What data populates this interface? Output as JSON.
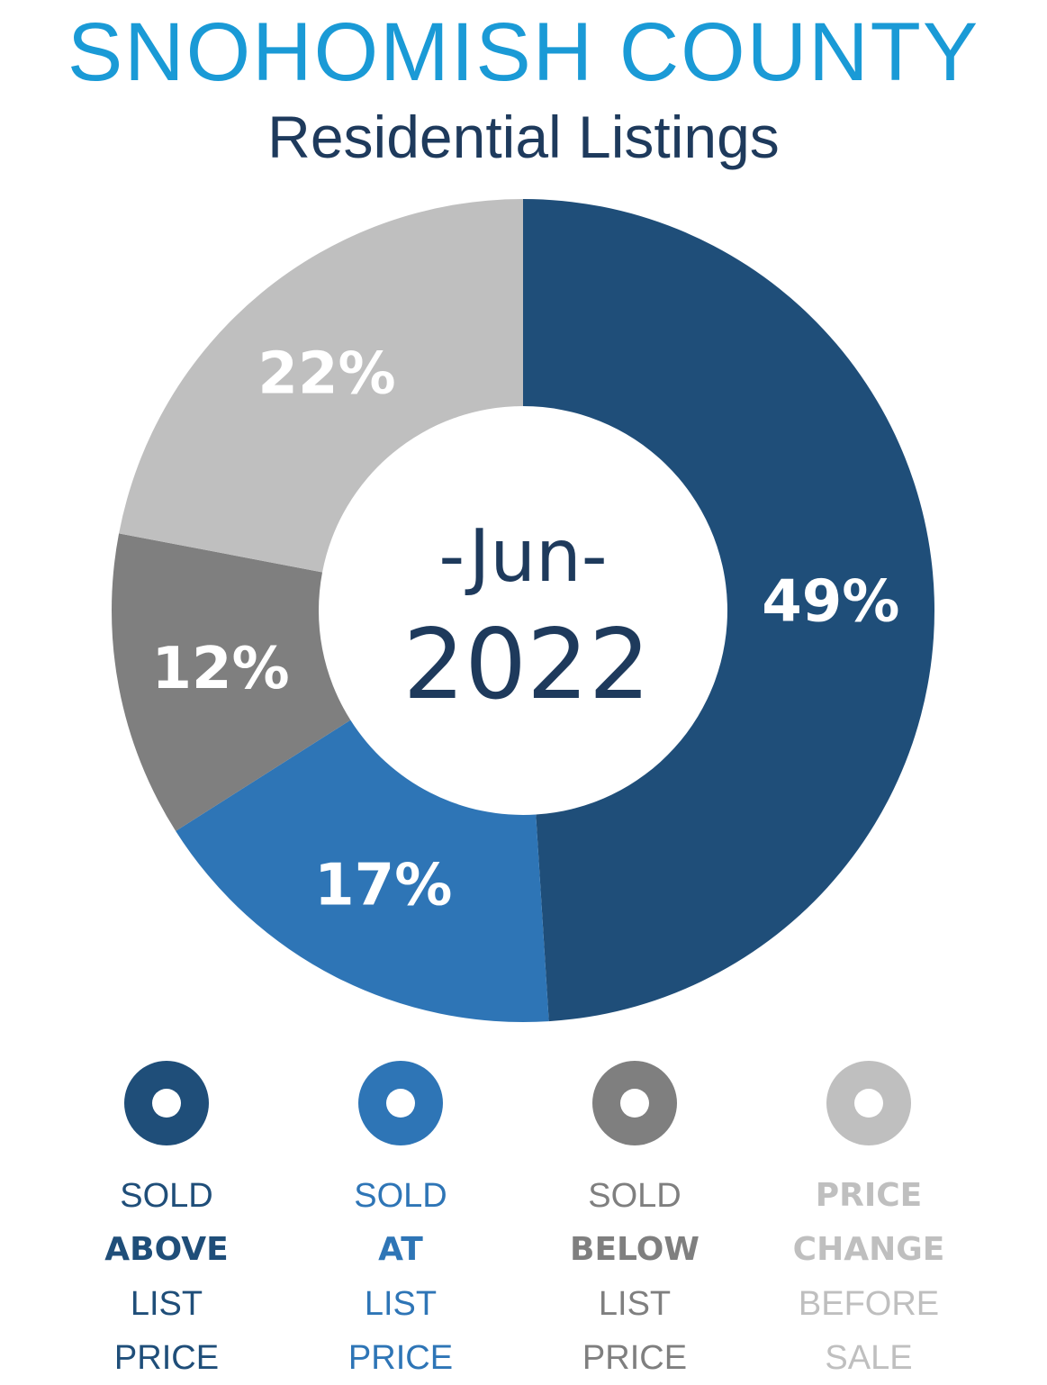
{
  "header": {
    "title": "SNOHOMISH COUNTY",
    "subtitle": "Residential Listings"
  },
  "colors": {
    "title": "#1a9ad6",
    "subtitle": "#1e3a5c",
    "center_text": "#1e3a5c"
  },
  "center": {
    "month": "-Jun-",
    "year": "2022"
  },
  "chart_data": {
    "type": "pie",
    "variant": "donut",
    "start_angle_deg": 0,
    "direction": "clockwise",
    "slices": [
      {
        "label": "SOLD ABOVE LIST PRICE",
        "value": 49,
        "value_label": "49%",
        "color": "#1f4e79"
      },
      {
        "label": "SOLD AT LIST PRICE",
        "value": 17,
        "value_label": "17%",
        "color": "#2e75b6"
      },
      {
        "label": "SOLD BELOW LIST PRICE",
        "value": 12,
        "value_label": "12%",
        "color": "#7f7f7f"
      },
      {
        "label": "PRICE CHANGE BEFORE SALE",
        "value": 22,
        "value_label": "22%",
        "color": "#bfbfbf"
      }
    ]
  },
  "legend": [
    {
      "icon": "ring-icon",
      "color": "#1f4e79",
      "lines": [
        {
          "text": "SOLD",
          "bold": false
        },
        {
          "text": "ABOVE",
          "bold": true
        },
        {
          "text": "LIST",
          "bold": false
        },
        {
          "text": "PRICE",
          "bold": false
        }
      ]
    },
    {
      "icon": "ring-icon",
      "color": "#2e75b6",
      "lines": [
        {
          "text": "SOLD",
          "bold": false
        },
        {
          "text": "AT",
          "bold": true
        },
        {
          "text": "LIST",
          "bold": false
        },
        {
          "text": "PRICE",
          "bold": false
        }
      ]
    },
    {
      "icon": "ring-icon",
      "color": "#7f7f7f",
      "lines": [
        {
          "text": "SOLD",
          "bold": false
        },
        {
          "text": "BELOW",
          "bold": true
        },
        {
          "text": "LIST",
          "bold": false
        },
        {
          "text": "PRICE",
          "bold": false
        }
      ]
    },
    {
      "icon": "ring-icon",
      "color": "#bfbfbf",
      "lines": [
        {
          "text": "PRICE",
          "bold": true
        },
        {
          "text": "CHANGE",
          "bold": true
        },
        {
          "text": "BEFORE",
          "bold": false
        },
        {
          "text": "SALE",
          "bold": false
        }
      ]
    }
  ]
}
